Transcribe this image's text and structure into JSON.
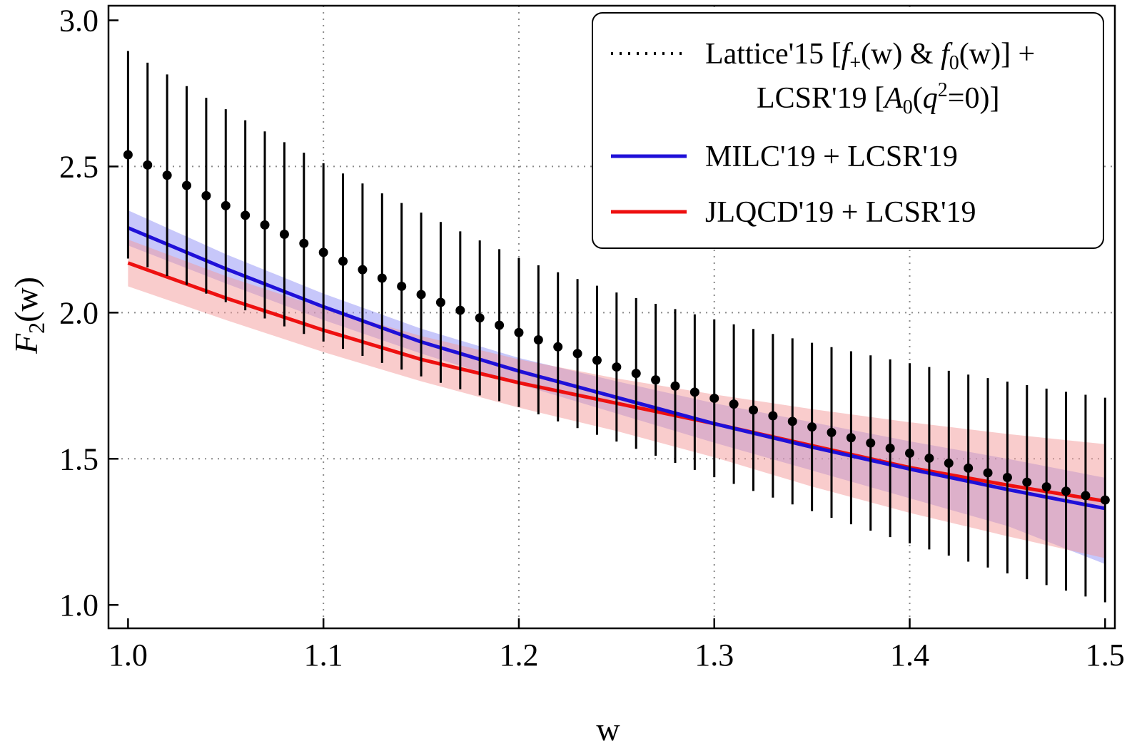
{
  "chart_data": {
    "type": "line",
    "title": "",
    "xlabel": "w",
    "ylabel": "F2(w)",
    "ylabel_parts": {
      "main": "F",
      "sub": "2",
      "rest": "(w)"
    },
    "xlim": [
      0.99,
      1.505
    ],
    "ylim": [
      0.92,
      3.05
    ],
    "x_ticks": [
      1.0,
      1.1,
      1.2,
      1.3,
      1.4,
      1.5
    ],
    "x_tick_labels": [
      "1.0",
      "1.1",
      "1.2",
      "1.3",
      "1.4",
      "1.5"
    ],
    "y_ticks": [
      1.0,
      1.5,
      2.0,
      2.5,
      3.0
    ],
    "y_tick_labels": [
      "1.0",
      "1.5",
      "2.0",
      "2.5",
      "3.0"
    ],
    "grid_x": [
      1.1,
      1.2,
      1.3,
      1.4
    ],
    "grid_y": [
      1.5,
      2.0,
      2.5
    ],
    "grid": true,
    "legend_position": "top-right",
    "series": [
      {
        "name": "Lattice'15 [f+(w) & f0(w)] + LCSR'19 [A0(q2=0)]",
        "kind": "points_with_errorbars",
        "color": "#000000",
        "x": [
          1.0,
          1.01,
          1.02,
          1.03,
          1.04,
          1.05,
          1.06,
          1.07,
          1.08,
          1.09,
          1.1,
          1.11,
          1.12,
          1.13,
          1.14,
          1.15,
          1.16,
          1.17,
          1.18,
          1.19,
          1.2,
          1.21,
          1.22,
          1.23,
          1.24,
          1.25,
          1.26,
          1.27,
          1.28,
          1.29,
          1.3,
          1.31,
          1.32,
          1.33,
          1.34,
          1.35,
          1.36,
          1.37,
          1.38,
          1.39,
          1.4,
          1.41,
          1.42,
          1.43,
          1.44,
          1.45,
          1.46,
          1.47,
          1.48,
          1.49,
          1.5
        ],
        "y": [
          2.54,
          2.505,
          2.47,
          2.435,
          2.4,
          2.366,
          2.333,
          2.3,
          2.268,
          2.237,
          2.206,
          2.176,
          2.147,
          2.118,
          2.09,
          2.062,
          2.035,
          2.008,
          1.982,
          1.957,
          1.932,
          1.907,
          1.883,
          1.86,
          1.837,
          1.814,
          1.792,
          1.77,
          1.749,
          1.728,
          1.707,
          1.687,
          1.667,
          1.647,
          1.628,
          1.609,
          1.59,
          1.572,
          1.554,
          1.536,
          1.519,
          1.502,
          1.485,
          1.468,
          1.452,
          1.436,
          1.42,
          1.404,
          1.389,
          1.374,
          1.359
        ],
        "err": [
          0.355,
          0.35,
          0.345,
          0.34,
          0.335,
          0.33,
          0.325,
          0.32,
          0.315,
          0.31,
          0.305,
          0.3,
          0.295,
          0.29,
          0.285,
          0.28,
          0.275,
          0.27,
          0.265,
          0.26,
          0.255,
          0.255,
          0.255,
          0.255,
          0.255,
          0.255,
          0.258,
          0.26,
          0.263,
          0.266,
          0.27,
          0.273,
          0.277,
          0.28,
          0.284,
          0.288,
          0.292,
          0.296,
          0.3,
          0.304,
          0.308,
          0.312,
          0.316,
          0.32,
          0.324,
          0.328,
          0.332,
          0.336,
          0.34,
          0.345,
          0.35
        ]
      },
      {
        "name": "MILC'19 + LCSR'19",
        "kind": "line_with_band",
        "color": "#1f10d8",
        "band_color": "#8f8ff5",
        "x": [
          1.0,
          1.05,
          1.1,
          1.15,
          1.2,
          1.25,
          1.3,
          1.35,
          1.4,
          1.45,
          1.5
        ],
        "y": [
          2.29,
          2.15,
          2.02,
          1.9,
          1.8,
          1.71,
          1.62,
          1.54,
          1.465,
          1.395,
          1.33
        ],
        "band_low": [
          2.23,
          2.1,
          1.975,
          1.86,
          1.755,
          1.655,
          1.555,
          1.46,
          1.365,
          1.27,
          1.14
        ],
        "band_high": [
          2.35,
          2.2,
          2.065,
          1.945,
          1.845,
          1.765,
          1.69,
          1.625,
          1.56,
          1.5,
          1.435
        ]
      },
      {
        "name": "JLQCD'19 + LCSR'19",
        "kind": "line_with_band",
        "color": "#ee1010",
        "band_color": "#f49a9a",
        "x": [
          1.0,
          1.05,
          1.1,
          1.15,
          1.2,
          1.25,
          1.3,
          1.35,
          1.4,
          1.45,
          1.5
        ],
        "y": [
          2.17,
          2.05,
          1.94,
          1.84,
          1.76,
          1.69,
          1.62,
          1.545,
          1.47,
          1.41,
          1.355
        ],
        "band_low": [
          2.09,
          1.975,
          1.865,
          1.765,
          1.675,
          1.595,
          1.505,
          1.405,
          1.315,
          1.235,
          1.16
        ],
        "band_high": [
          2.25,
          2.125,
          2.015,
          1.92,
          1.84,
          1.775,
          1.72,
          1.67,
          1.625,
          1.585,
          1.55
        ]
      }
    ],
    "legend": {
      "entries": [
        {
          "style": "dotted",
          "line1_parts": [
            "Lattice'15 [",
            "f",
            "+",
            "(w) & ",
            "f",
            "0",
            "(w)] +"
          ],
          "line2_parts": [
            "LCSR'19 [",
            "A",
            "0",
            "(",
            "q",
            "2",
            "=0)]"
          ]
        },
        {
          "style": "solid",
          "label": "MILC'19 + LCSR'19"
        },
        {
          "style": "solid",
          "label": "JLQCD'19 + LCSR'19"
        }
      ]
    }
  }
}
